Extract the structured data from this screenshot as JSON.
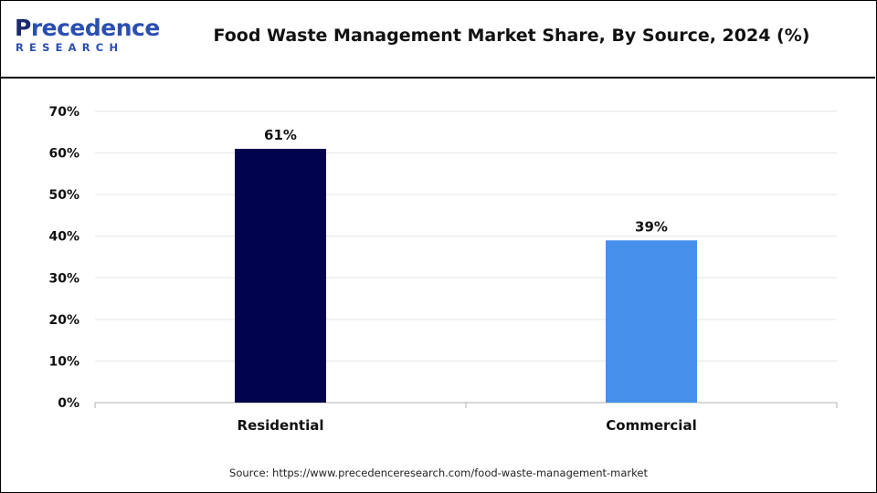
{
  "logo": {
    "brand_top_initial": "P",
    "brand_top_rest": "recedence",
    "brand_bottom": "RESEARCH"
  },
  "title": "Food Waste Management Market Share, By Source, 2024 (%)",
  "source": "Source: https://www.precedenceresearch.com/food-waste-management-market",
  "colors": {
    "residential": "#02034d",
    "commercial": "#4690ec",
    "grid": "#e6e6e6",
    "axis": "#b0b0b0"
  },
  "chart_data": {
    "type": "bar",
    "title": "Food Waste Management Market Share, By Source, 2024 (%)",
    "categories": [
      "Residential",
      "Commercial"
    ],
    "values": [
      61,
      39
    ],
    "value_labels": [
      "61%",
      "39%"
    ],
    "ylim": [
      0,
      70
    ],
    "yticks": [
      0,
      10,
      20,
      30,
      40,
      50,
      60,
      70
    ],
    "ytick_labels": [
      "0%",
      "10%",
      "20%",
      "30%",
      "40%",
      "50%",
      "60%",
      "70%"
    ],
    "xlabel": "",
    "ylabel": "",
    "grid": true,
    "legend": "none"
  }
}
